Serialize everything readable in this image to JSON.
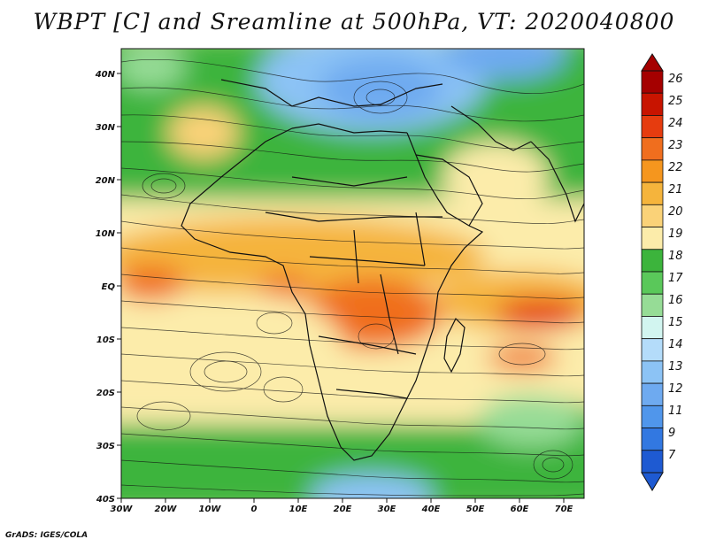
{
  "title": "WBPT [C] and Sreamline at 500hPa, VT: 2020040800",
  "credit": "GrADS: IGES/COLA",
  "lat_labels": [
    "40N",
    "30N",
    "20N",
    "10N",
    "EQ",
    "10S",
    "20S",
    "30S",
    "40S"
  ],
  "lon_labels": [
    "30W",
    "20W",
    "10W",
    "0",
    "10E",
    "20E",
    "30E",
    "40E",
    "50E",
    "60E",
    "70E"
  ],
  "colorbar": {
    "labels": [
      "26",
      "25",
      "24",
      "23",
      "22",
      "21",
      "20",
      "19",
      "18",
      "17",
      "16",
      "15",
      "14",
      "13",
      "12",
      "11",
      "9",
      "7"
    ],
    "colors": [
      "#a50000",
      "#c81400",
      "#e63c0f",
      "#f06e1e",
      "#f5961e",
      "#f5b43c",
      "#fad278",
      "#fcecaa",
      "#3cb43c",
      "#5ac85a",
      "#96dc96",
      "#d2f5f0",
      "#b4dcfa",
      "#8cc3f5",
      "#6eaaf0",
      "#5096eb",
      "#3278e1",
      "#1e5ad2"
    ]
  }
}
